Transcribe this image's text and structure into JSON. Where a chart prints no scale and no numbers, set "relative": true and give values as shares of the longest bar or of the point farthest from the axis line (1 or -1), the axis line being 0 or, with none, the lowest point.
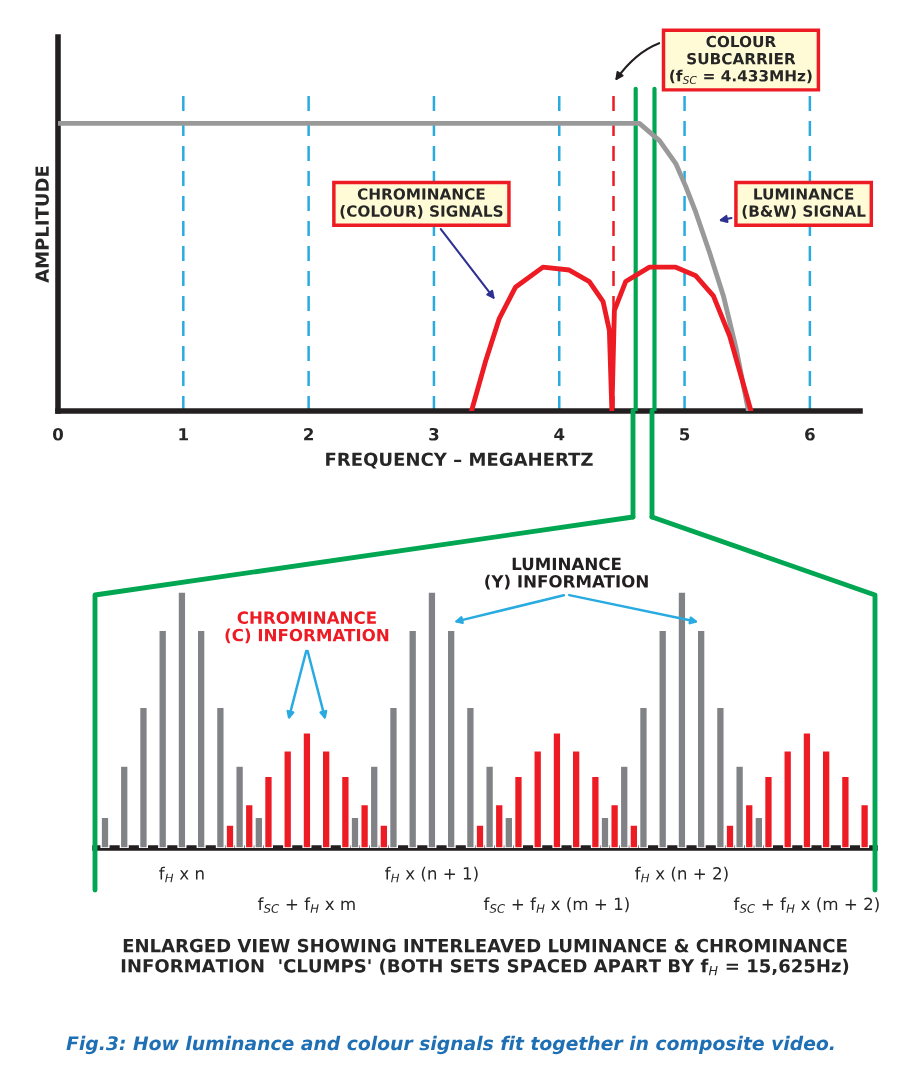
{
  "chart_data": [
    {
      "type": "line",
      "xlabel": "FREQUENCY – MEGAHERTZ",
      "ylabel": "AMPLITUDE",
      "relative": true,
      "xlim": [
        0,
        6.4
      ],
      "xticks": [
        0,
        1,
        2,
        3,
        4,
        5,
        6
      ],
      "series": [
        {
          "name": "LUMINANCE\n(B&W) SIGNAL",
          "color": "#999999",
          "x": [
            0,
            4.64,
            4.8,
            4.93,
            5.01,
            5.09,
            5.2,
            5.31,
            5.41,
            5.51
          ],
          "values": [
            1,
            1,
            0.94,
            0.86,
            0.78,
            0.69,
            0.55,
            0.4,
            0.22,
            0
          ]
        },
        {
          "name": "CHROMINANCE\n(COLOUR) SIGNALS",
          "color": "#ed1c24",
          "x": [
            3.3,
            3.41,
            3.52,
            3.65,
            3.87,
            4.08,
            4.24,
            4.35,
            4.4,
            4.42,
            4.44,
            4.53,
            4.72,
            4.93,
            5.09,
            5.23,
            5.36,
            5.53
          ],
          "values": [
            0,
            0.17,
            0.32,
            0.43,
            0.5,
            0.49,
            0.45,
            0.38,
            0.28,
            0,
            0.35,
            0.45,
            0.5,
            0.5,
            0.47,
            0.4,
            0.26,
            0
          ]
        }
      ],
      "ref_lines": [
        {
          "axis": "x",
          "value": 1,
          "color": "#29abe2",
          "line_style": "dashed"
        },
        {
          "axis": "x",
          "value": 2,
          "color": "#29abe2",
          "line_style": "dashed"
        },
        {
          "axis": "x",
          "value": 3,
          "color": "#29abe2",
          "line_style": "dashed"
        },
        {
          "axis": "x",
          "value": 4,
          "color": "#29abe2",
          "line_style": "dashed"
        },
        {
          "axis": "x",
          "value": 5,
          "color": "#29abe2",
          "line_style": "dashed"
        },
        {
          "axis": "x",
          "value": 6,
          "color": "#29abe2",
          "line_style": "dashed"
        },
        {
          "axis": "x",
          "value": 4.433,
          "color": "#ed1c24",
          "line_style": "dashed",
          "label": "COLOUR\nSUBCARRIER\n(f$_{SC}$ = 4.433MHz)"
        },
        {
          "axis": "x",
          "value": 4.61,
          "color": "#00a651",
          "line_style": "solid"
        },
        {
          "axis": "x",
          "value": 4.76,
          "color": "#00a651",
          "line_style": "solid"
        }
      ]
    },
    {
      "type": "bar",
      "relative": true,
      "xlabel": "ENLARGED VIEW SHOWING INTERLEAVED LUMINANCE & CHROMINANCE\nINFORMATION  'CLUMPS' (BOTH SETS SPACED APART BY f$_{H}$ = 15,625Hz)",
      "annotations": [
        "Fig.3: How luminance and colour signals fit together in composite video."
      ],
      "categories": [
        null,
        null,
        null,
        null,
        null,
        null,
        null,
        null,
        "f$_{H}$ x n",
        null,
        null,
        null,
        null,
        null,
        null,
        null,
        null,
        null,
        null,
        null,
        null,
        "f$_{SC}$ + f$_{H}$ x m",
        null,
        null,
        null,
        null,
        null,
        null,
        null,
        null,
        null,
        null,
        null,
        null,
        "f$_{H}$ x (n + 1)",
        null,
        null,
        null,
        null,
        null,
        null,
        null,
        null,
        null,
        null,
        null,
        null,
        "f$_{SC}$ + f$_{H}$ x (m + 1)",
        null,
        null,
        null,
        null,
        null,
        null,
        null,
        null,
        null,
        null,
        null,
        null,
        "f$_{H}$ x (n + 2)",
        null,
        null,
        null,
        null,
        null,
        null,
        null,
        null,
        null,
        null,
        null,
        null,
        "f$_{SC}$ + f$_{H}$ x (m + 2)",
        null,
        null,
        null,
        null,
        null,
        null
      ],
      "series": [
        {
          "name": "LUMINANCE\n(Y) INFORMATION",
          "color": "#808285",
          "values": [
            0.12,
            null,
            0.32,
            null,
            0.55,
            null,
            0.85,
            null,
            1,
            null,
            0.85,
            null,
            0.55,
            null,
            0.32,
            null,
            0.12,
            null,
            null,
            null,
            null,
            null,
            null,
            null,
            null,
            null,
            0.12,
            null,
            0.32,
            null,
            0.55,
            null,
            0.85,
            null,
            1,
            null,
            0.85,
            null,
            0.55,
            null,
            0.32,
            null,
            0.12,
            null,
            null,
            null,
            null,
            null,
            null,
            null,
            null,
            null,
            0.12,
            null,
            0.32,
            null,
            0.55,
            null,
            0.85,
            null,
            1,
            null,
            0.85,
            null,
            0.55,
            null,
            0.32,
            null,
            0.12,
            null,
            null,
            null,
            null,
            null,
            null,
            null,
            null,
            null,
            null,
            null
          ]
        },
        {
          "name": "CHROMINANCE\n(C) INFORMATION",
          "color": "#ed1c24",
          "values": [
            null,
            null,
            null,
            null,
            null,
            null,
            null,
            null,
            null,
            null,
            null,
            null,
            null,
            0.09,
            null,
            0.17,
            null,
            0.28,
            null,
            0.38,
            null,
            0.45,
            null,
            0.38,
            null,
            0.28,
            null,
            0.17,
            null,
            0.09,
            null,
            null,
            null,
            null,
            null,
            null,
            null,
            null,
            null,
            0.09,
            null,
            0.17,
            null,
            0.28,
            null,
            0.38,
            null,
            0.45,
            null,
            0.38,
            null,
            0.28,
            null,
            0.17,
            null,
            0.09,
            null,
            null,
            null,
            null,
            null,
            null,
            null,
            null,
            null,
            0.09,
            null,
            0.17,
            null,
            0.28,
            null,
            0.38,
            null,
            0.45,
            null,
            0.38,
            null,
            0.28,
            null,
            0.17
          ]
        }
      ]
    }
  ]
}
